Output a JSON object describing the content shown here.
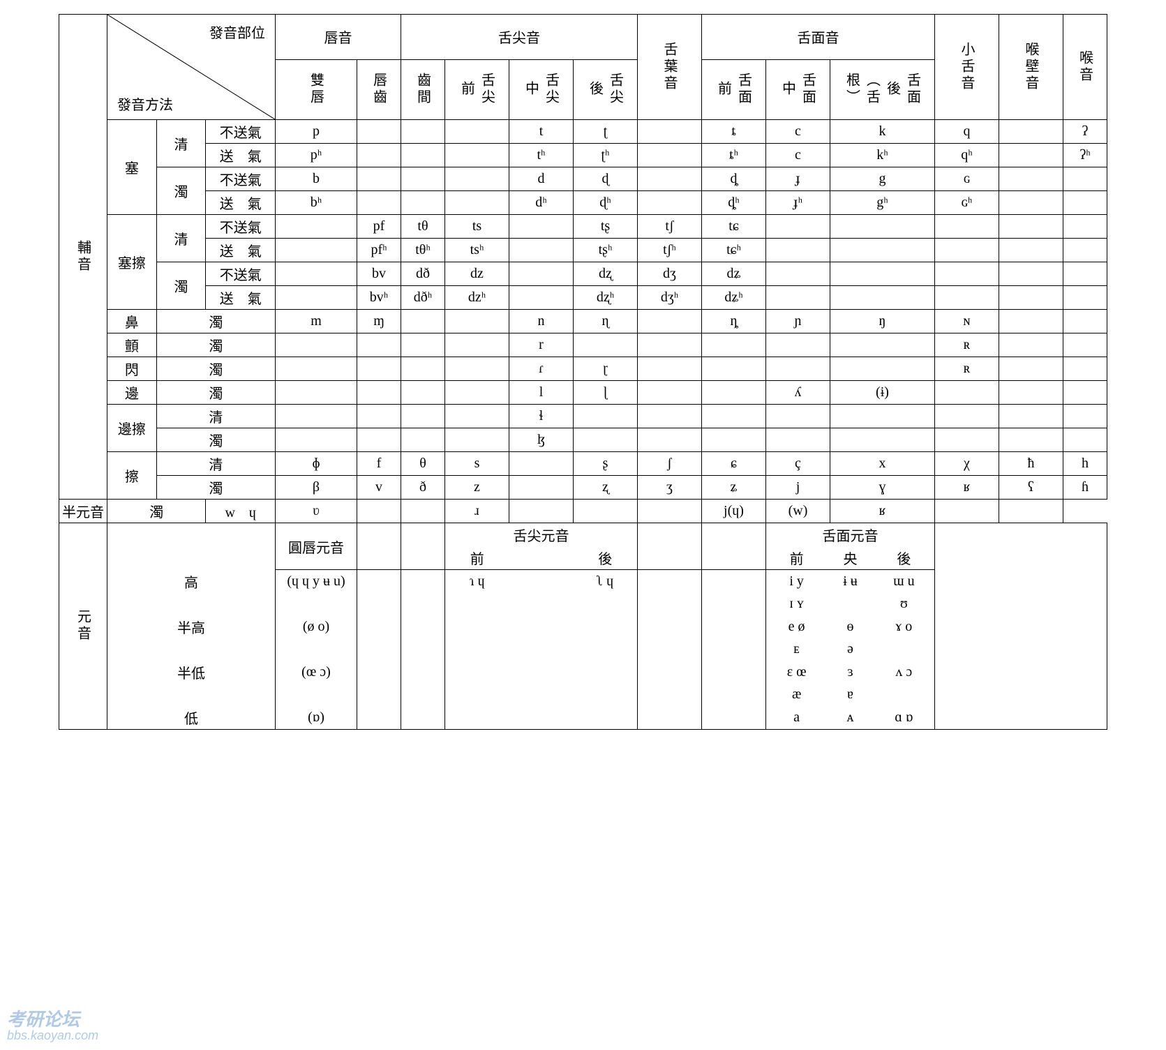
{
  "meta": {
    "type": "table",
    "background_color": "#ffffff",
    "border_color": "#000000",
    "font_main": "Times New Roman / SimSun",
    "font_size_pt": 15
  },
  "corner": {
    "top_right": "發音部位",
    "bottom_left": "發音方法"
  },
  "top_groups": {
    "labial": "唇音",
    "apical": "舌尖音",
    "dorsal": "舌面音"
  },
  "columns": {
    "bilabial": "雙唇",
    "labiodental": "唇齒",
    "interdental": "齒間",
    "apical_front": "舌尖前",
    "apical_mid": "舌尖中",
    "apical_back": "舌尖後",
    "laminal": "舌葉音",
    "dorsal_front": "舌面前",
    "dorsal_mid": "舌面中",
    "dorsal_back": "舌面後（舌根）",
    "uvular": "小舌音",
    "pharyngeal": "喉壁音",
    "glottal": "喉音"
  },
  "side": {
    "consonant": "輔音",
    "vowel": "元音"
  },
  "manner": {
    "stop": "塞",
    "affricate": "塞擦",
    "nasal": "鼻",
    "trill": "顫",
    "tap": "閃",
    "lateral": "邊",
    "lat_fric": "邊擦",
    "fricative": "擦",
    "semivowel": "半元音"
  },
  "voice": {
    "voiceless": "清",
    "voiced": "濁",
    "unasp": "不送氣",
    "asp": "送　氣"
  },
  "cells": {
    "stop_vl_un": {
      "bilabial": "p",
      "apical_mid": "t",
      "apical_back": "ʈ",
      "dorsal_front": "ȶ",
      "dorsal_mid": "c",
      "dorsal_back": "k",
      "uvular": "q",
      "glottal": "ʔ"
    },
    "stop_vl_as": {
      "bilabial": "pʰ",
      "apical_mid": "tʰ",
      "apical_back": "ʈʰ",
      "dorsal_front": "ȶʰ",
      "dorsal_mid": "c",
      "dorsal_back": "kʰ",
      "uvular": "qʰ",
      "glottal": "ʔʰ"
    },
    "stop_vd_un": {
      "bilabial": "b",
      "apical_mid": "d",
      "apical_back": "ɖ",
      "dorsal_front": "ȡ",
      "dorsal_mid": "ɟ",
      "dorsal_back": "g",
      "uvular": "ɢ"
    },
    "stop_vd_as": {
      "bilabial": "bʰ",
      "apical_mid": "dʰ",
      "apical_back": "ɖʰ",
      "dorsal_front": "ȡʰ",
      "dorsal_mid": "ɟʰ",
      "dorsal_back": "gʰ",
      "uvular": "ɢʰ"
    },
    "aff_vl_un": {
      "labiodental": "pf",
      "interdental": "tθ",
      "apical_front": "ts",
      "apical_back": "tʂ",
      "laminal": "tʃ",
      "dorsal_front": "tɕ"
    },
    "aff_vl_as": {
      "labiodental": "pfʰ",
      "interdental": "tθʰ",
      "apical_front": "tsʰ",
      "apical_back": "tʂʰ",
      "laminal": "tʃʰ",
      "dorsal_front": "tɕʰ"
    },
    "aff_vd_un": {
      "labiodental": "bv",
      "interdental": "dð",
      "apical_front": "dz",
      "apical_back": "dʐ",
      "laminal": "dʒ",
      "dorsal_front": "dʑ"
    },
    "aff_vd_as": {
      "labiodental": "bvʰ",
      "interdental": "dðʰ",
      "apical_front": "dzʰ",
      "apical_back": "dʐʰ",
      "laminal": "dʒʰ",
      "dorsal_front": "dʑʰ"
    },
    "nasal": {
      "bilabial": "m",
      "labiodental": "ɱ",
      "apical_mid": "n",
      "apical_back": "ɳ",
      "dorsal_front": "ȵ",
      "dorsal_mid": "ɲ",
      "dorsal_back": "ŋ",
      "uvular": "ɴ"
    },
    "trill": {
      "apical_mid": "r",
      "uvular": "ʀ"
    },
    "tap": {
      "apical_mid": "ɾ",
      "apical_back": "ɽ",
      "uvular": "ʀ"
    },
    "lateral": {
      "apical_mid": "l",
      "apical_back": "ɭ",
      "dorsal_mid": "ʎ",
      "dorsal_back": "(ɨ)"
    },
    "latfric_vl": {
      "apical_mid": "ɬ"
    },
    "latfric_vd": {
      "apical_mid": "ɮ"
    },
    "fric_vl": {
      "bilabial": "ɸ",
      "labiodental": "f",
      "interdental": "θ",
      "apical_front": "s",
      "apical_back": "ʂ",
      "laminal": "ʃ",
      "dorsal_front": "ɕ",
      "dorsal_mid": "ç",
      "dorsal_back": "x",
      "uvular": "χ",
      "pharyngeal": "ħ",
      "glottal": "h"
    },
    "fric_vd": {
      "bilabial": "β",
      "labiodental": "v",
      "interdental": "ð",
      "apical_front": "z",
      "apical_back": "ʐ",
      "laminal": "ʒ",
      "dorsal_front": "ʑ",
      "dorsal_mid": "j",
      "dorsal_back": "ɣ",
      "uvular": "ʁ",
      "pharyngeal": "ʕ",
      "glottal": "ɦ"
    },
    "semi": {
      "bilabial": "w　ɥ",
      "labiodental": "ʋ",
      "apical_mid": "ɹ",
      "dorsal_mid": "j(ɥ)",
      "dorsal_back": "(w)",
      "uvular": "ʁ"
    }
  },
  "vowel_header": {
    "rounded": "圓唇元音",
    "apical": "舌尖元音",
    "apical_front": "前",
    "apical_back": "後",
    "dorsal": "舌面元音",
    "dorsal_front": "前",
    "dorsal_central": "央",
    "dorsal_back": "後"
  },
  "vowel_rows": {
    "high": "高",
    "midhigh": "半高",
    "midlow": "半低",
    "low": "低"
  },
  "vowels": {
    "rounded": {
      "high": "(ɥ ɥ y ʉ u)",
      "midhigh": "(ø o)",
      "midlow": "(œ ɔ)",
      "low": "(ɒ)"
    },
    "apical": {
      "high_front": "ɿ ɥ",
      "high_back": "ʅ ɥ"
    },
    "dorsal": {
      "high": {
        "front": "i y",
        "central": "ɨ ʉ",
        "back": "ɯ u"
      },
      "high2": {
        "front": "ɪ ʏ",
        "central": "",
        "back": "ʊ"
      },
      "midhigh": {
        "front": "e ø",
        "central": "ɵ",
        "back": "ɤ o"
      },
      "mid": {
        "front": "ᴇ",
        "central": "ə",
        "back": ""
      },
      "midlow": {
        "front": "ɛ œ",
        "central": "ɜ",
        "back": "ʌ ɔ"
      },
      "nearlow": {
        "front": "æ",
        "central": "ɐ",
        "back": ""
      },
      "low": {
        "front": "a",
        "central": "ᴀ",
        "back": "ɑ ɒ"
      }
    }
  },
  "watermark": {
    "line1": "考研论坛",
    "line2": "bbs.kaoyan.com"
  }
}
